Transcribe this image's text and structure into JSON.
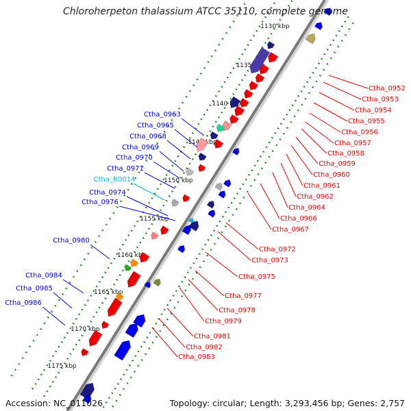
{
  "title": "Chloroherpeton thalassium ATCC 35110, complete genome",
  "accession": "Accession: NC_011026",
  "topology": "Topology: circular; Length: 3,293,456 bp; Genes: 2,757",
  "colors": {
    "forward_gene": "#0000ee",
    "reverse_gene": "#ee0000",
    "rna_gene": "#00b7ee",
    "navy_gene": "#1a1a80",
    "backbone": "#7a7a7a",
    "tick": "#2a8a2a"
  },
  "scale_labels": [
    "1130 kbp",
    "1135 kbp",
    "1140 kbp",
    "1145 kbp",
    "1150 kbp",
    "1155 kbp",
    "1160 kbp",
    "1165 kbp",
    "1170 kbp",
    "1175 kbp"
  ],
  "left_genes": [
    "Ctha_0963",
    "Ctha_0965",
    "Ctha_0968",
    "Ctha_0969",
    "Ctha_0970",
    "Ctha_0971",
    "Ctha_R0014",
    "Ctha_0974",
    "Ctha_0976",
    "Ctha_0980",
    "Ctha_0984",
    "Ctha_0985",
    "Ctha_0986"
  ],
  "right_genes": [
    "Ctha_0952",
    "Ctha_0953",
    "Ctha_0954",
    "Ctha_0955",
    "Ctha_0956",
    "Ctha_0957",
    "Ctha_0958",
    "Ctha_0959",
    "Ctha_0960",
    "Ctha_0961",
    "Ctha_0962",
    "Ctha_0964",
    "Ctha_0966",
    "Ctha_0967",
    "Ctha_0972",
    "Ctha_0973",
    "Ctha_0975",
    "Ctha_0977",
    "Ctha_0978",
    "Ctha_0979",
    "Ctha_0981",
    "Ctha_0982",
    "Ctha_0983"
  ]
}
